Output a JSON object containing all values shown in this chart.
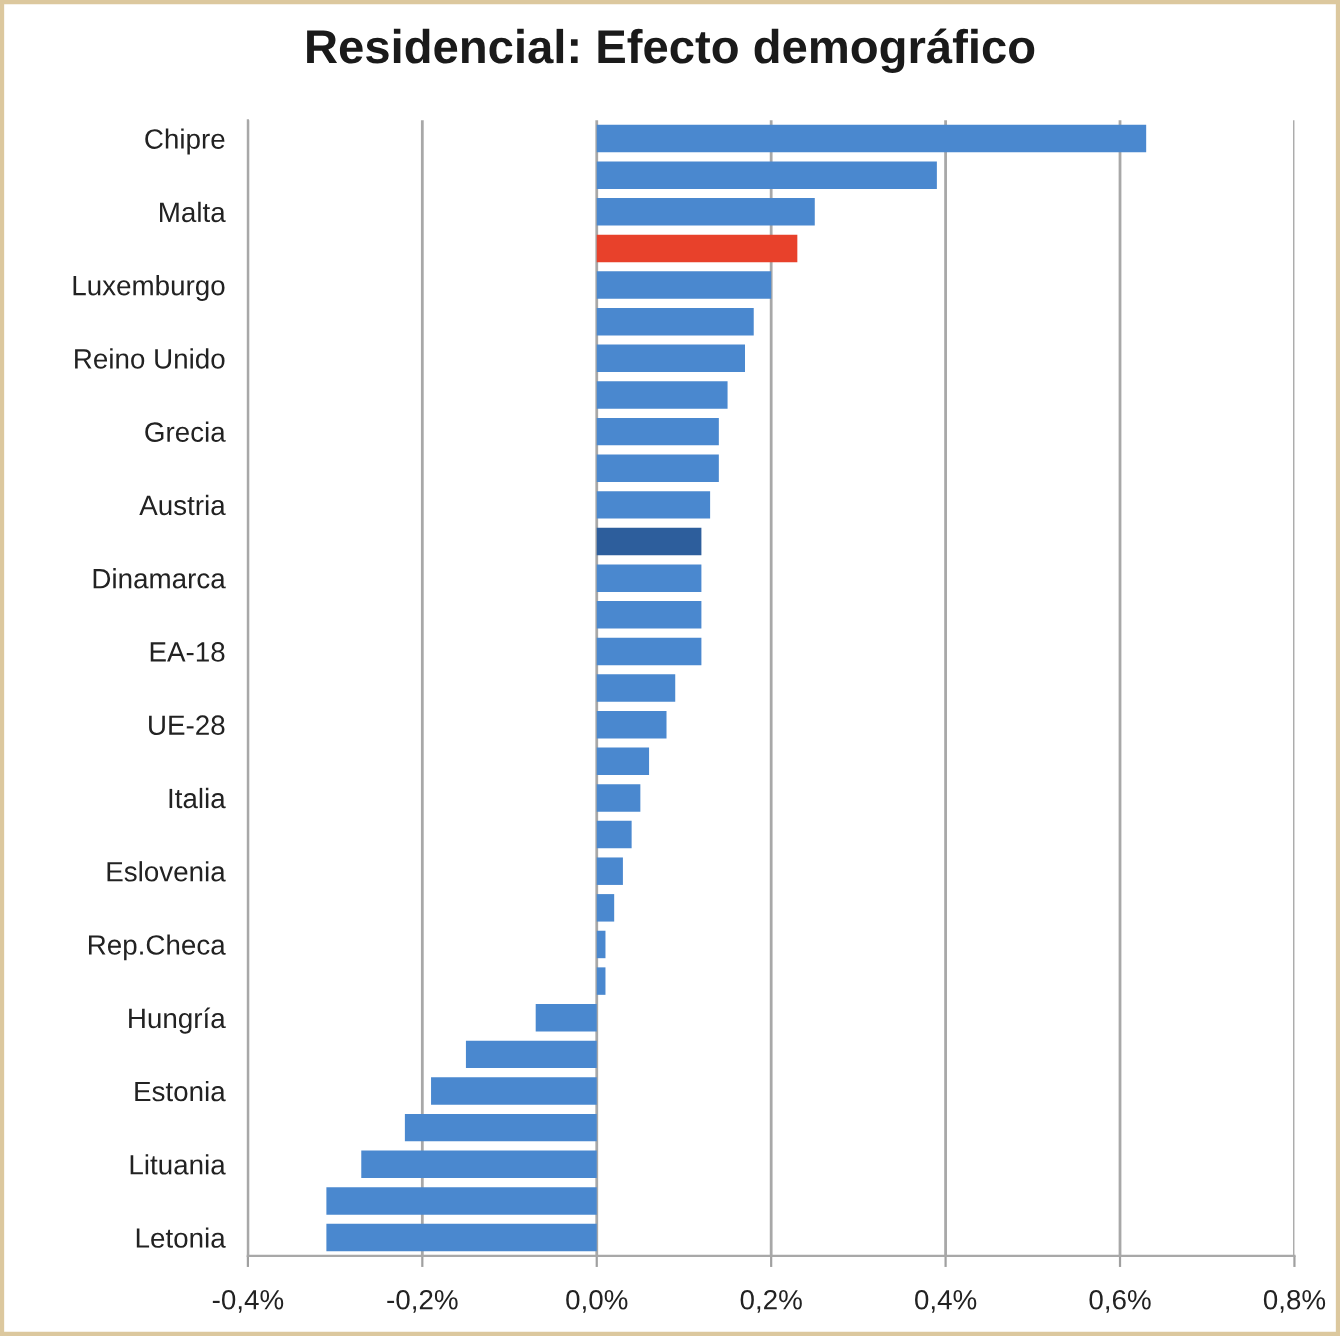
{
  "chart_data": {
    "type": "bar",
    "orientation": "horizontal",
    "title": "Residencial: Efecto demográfico",
    "categories": [
      "Chipre",
      null,
      "Malta",
      null,
      "Luxemburgo",
      null,
      "Reino Unido",
      null,
      "Grecia",
      null,
      "Austria",
      null,
      "Dinamarca",
      null,
      "EA-18",
      null,
      "UE-28",
      null,
      "Italia",
      null,
      "Eslovenia",
      null,
      "Rep.Checa",
      null,
      "Hungría",
      null,
      "Estonia",
      null,
      "Lituania",
      null,
      "Letonia"
    ],
    "values": [
      0.63,
      0.39,
      0.25,
      0.23,
      0.2,
      0.18,
      0.17,
      0.15,
      0.14,
      0.14,
      0.13,
      0.12,
      0.12,
      0.12,
      0.12,
      0.09,
      0.08,
      0.06,
      0.05,
      0.04,
      0.03,
      0.02,
      0.01,
      0.01,
      -0.07,
      -0.15,
      -0.19,
      -0.22,
      -0.27,
      -0.31,
      -0.31
    ],
    "colors": [
      "#4a88cf",
      "#4a88cf",
      "#4a88cf",
      "#e8412b",
      "#4a88cf",
      "#4a88cf",
      "#4a88cf",
      "#4a88cf",
      "#4a88cf",
      "#4a88cf",
      "#4a88cf",
      "#2d5e9c",
      "#4a88cf",
      "#4a88cf",
      "#4a88cf",
      "#4a88cf",
      "#4a88cf",
      "#4a88cf",
      "#4a88cf",
      "#4a88cf",
      "#4a88cf",
      "#4a88cf",
      "#4a88cf",
      "#4a88cf",
      "#4a88cf",
      "#4a88cf",
      "#4a88cf",
      "#4a88cf",
      "#4a88cf",
      "#4a88cf",
      "#4a88cf"
    ],
    "xlim": [
      -0.4,
      0.8
    ],
    "xticks": [
      {
        "value": -0.4,
        "label": "-0,4%"
      },
      {
        "value": -0.2,
        "label": "-0,2%"
      },
      {
        "value": 0.0,
        "label": "0,0%"
      },
      {
        "value": 0.2,
        "label": "0,2%"
      },
      {
        "value": 0.4,
        "label": "0,4%"
      },
      {
        "value": 0.6,
        "label": "0,6%"
      },
      {
        "value": 0.8,
        "label": "0,8%"
      }
    ],
    "grid": "x",
    "legend": false
  }
}
